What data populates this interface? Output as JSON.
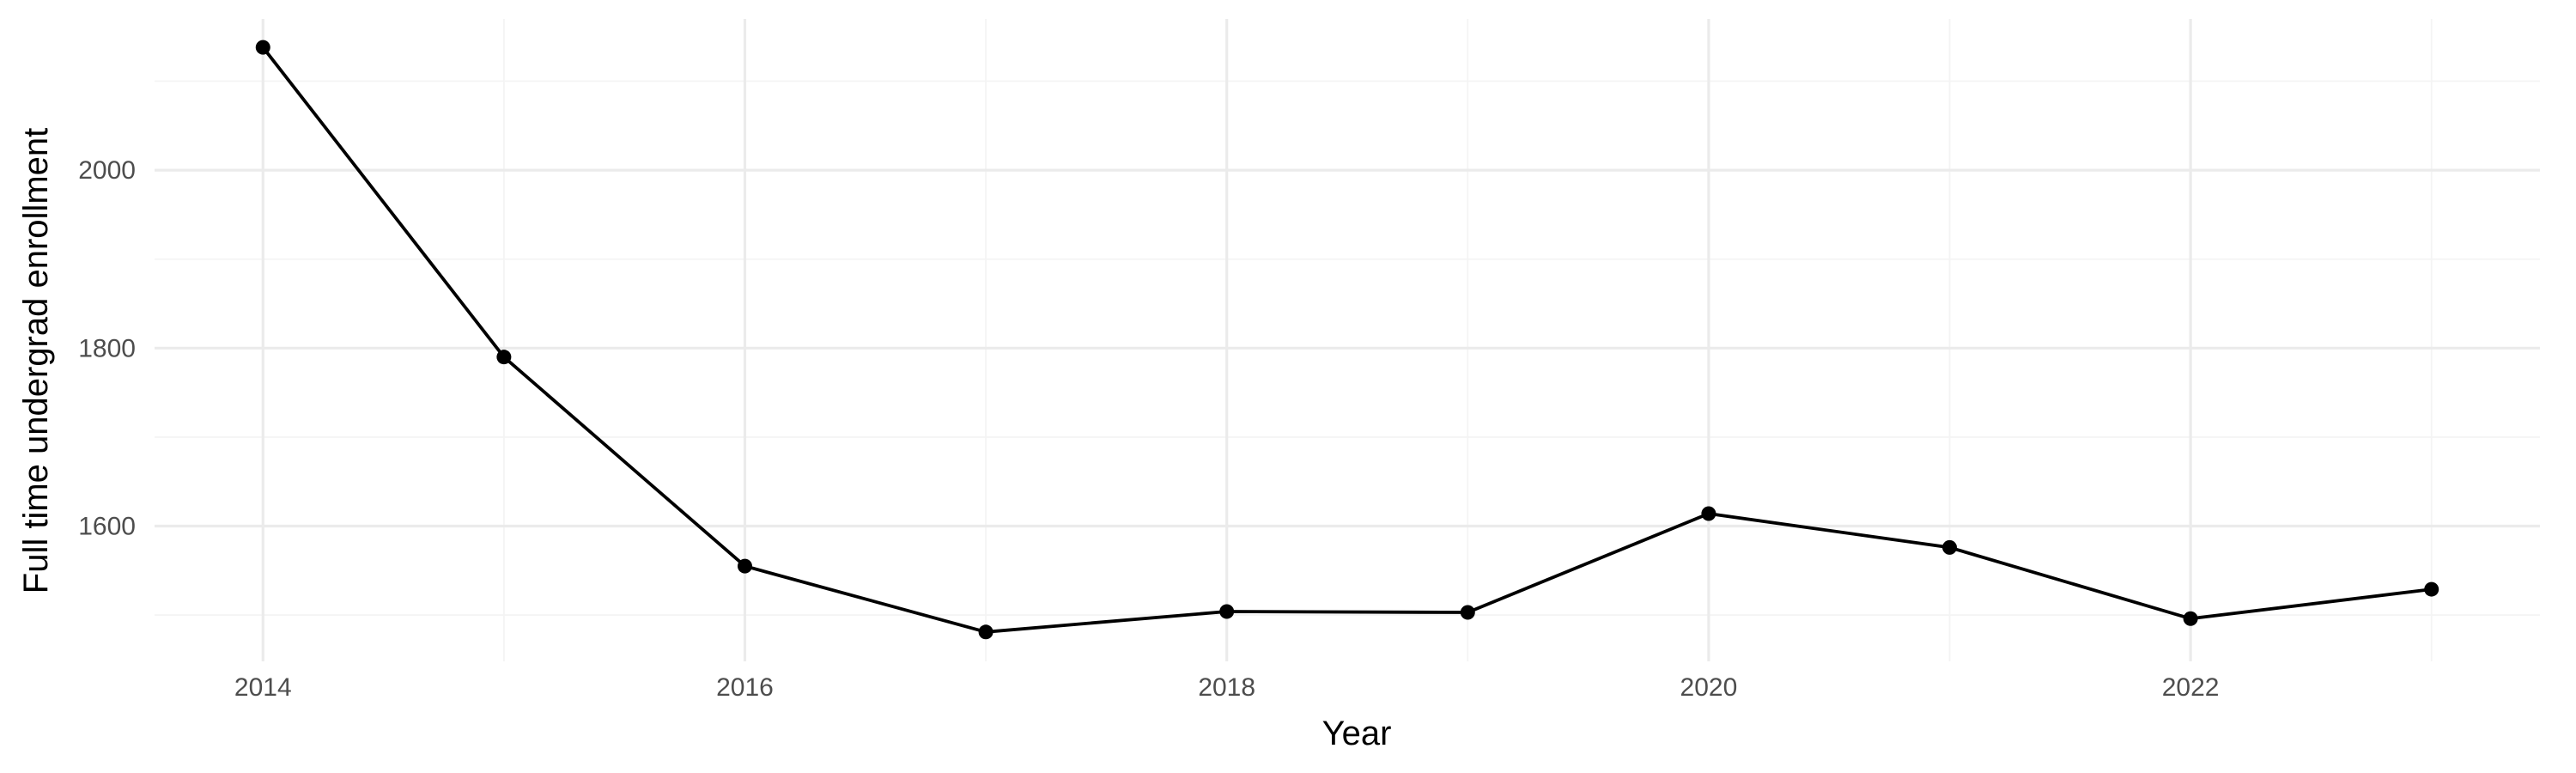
{
  "chart_data": {
    "type": "line",
    "title": "",
    "xlabel": "Year",
    "ylabel": "Full time undergrad enrollment",
    "x": [
      2014,
      2015,
      2016,
      2017,
      2018,
      2019,
      2020,
      2021,
      2022,
      2023
    ],
    "series": [
      {
        "values": [
          2138,
          1790,
          1555,
          1481,
          1504,
          1503,
          1614,
          1576,
          1496,
          1529
        ],
        "color": "#000000"
      }
    ],
    "xlim": [
      2013.55,
      2023.45
    ],
    "ylim": [
      1448,
      2170
    ],
    "x_major_ticks": [
      2014,
      2016,
      2018,
      2020,
      2022
    ],
    "x_minor_ticks": [
      2015,
      2017,
      2019,
      2021,
      2023
    ],
    "x_tick_labels": [
      "2014",
      "2016",
      "2018",
      "2020",
      "2022"
    ],
    "y_major_ticks": [
      1600,
      1800,
      2000
    ],
    "y_minor_ticks": [
      1500,
      1700,
      1900,
      2100
    ],
    "y_tick_labels": [
      "1600",
      "1800",
      "2000"
    ],
    "grid": true,
    "legend": "none",
    "markers": "filled-circle"
  }
}
